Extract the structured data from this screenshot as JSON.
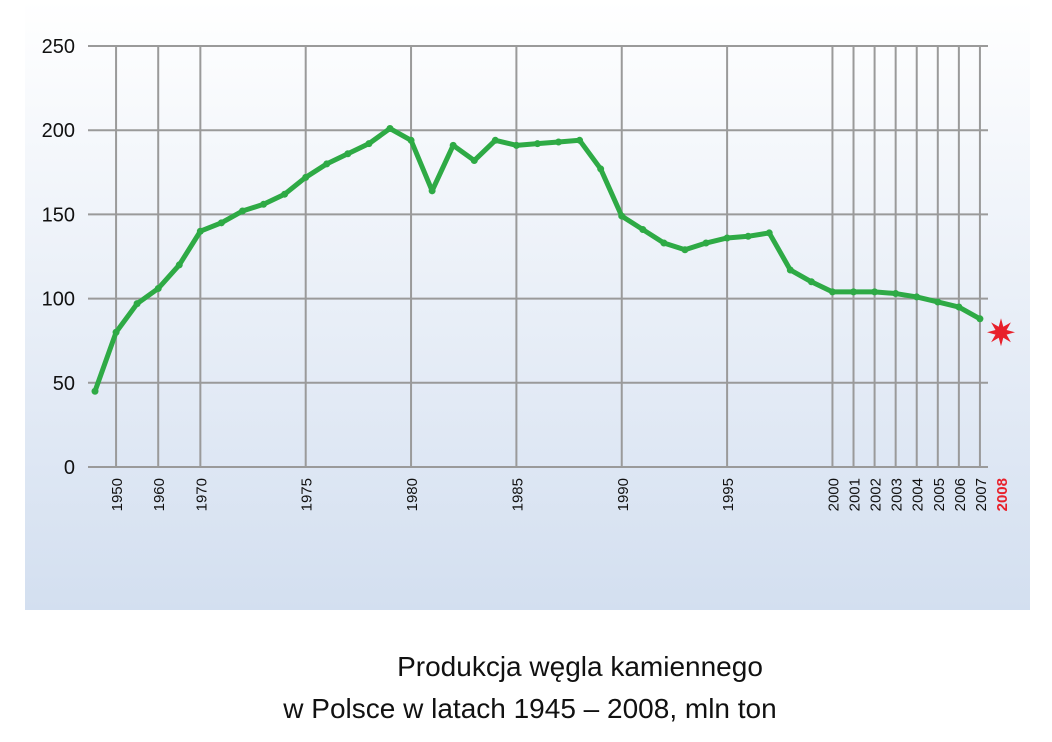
{
  "chart_data": {
    "type": "line",
    "title": [
      "Produkcja węgla kamiennego",
      "w Polsce w latach 1945 – 2008, mln ton"
    ],
    "categories": [
      null,
      "1950",
      null,
      "1960",
      null,
      "1970",
      null,
      null,
      null,
      null,
      "1975",
      null,
      null,
      null,
      null,
      "1980",
      null,
      null,
      null,
      null,
      "1985",
      null,
      null,
      null,
      null,
      "1990",
      null,
      null,
      null,
      null,
      "1995",
      null,
      null,
      null,
      null,
      "2000",
      "2001",
      "2002",
      "2003",
      "2004",
      "2005",
      "2006",
      "2007",
      "2008"
    ],
    "series": [
      {
        "color": "#2eaa45",
        "values": [
          45,
          80,
          97,
          106,
          120,
          140,
          145,
          152,
          156,
          162,
          172,
          180,
          186,
          192,
          201,
          194,
          164,
          191,
          182,
          194,
          191,
          192,
          193,
          194,
          177,
          149,
          141,
          133,
          129,
          133,
          136,
          137,
          139,
          117,
          110,
          104,
          104,
          104,
          103,
          101,
          98,
          95,
          88,
          null
        ]
      }
    ],
    "highlight": {
      "category_index": 43,
      "value": 80,
      "color": "#e8202a"
    },
    "ylim": [
      0,
      250
    ],
    "yticks": [
      0,
      50,
      100,
      150,
      200,
      250
    ],
    "grid": true
  }
}
